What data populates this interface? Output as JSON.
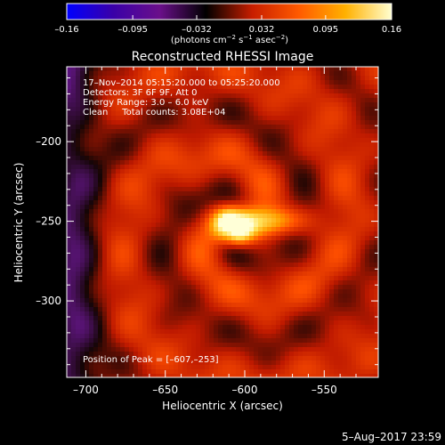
{
  "colorbar": {
    "tick_values": [
      -0.16,
      -0.095,
      -0.032,
      0.032,
      0.095,
      0.16
    ],
    "tick_labels": [
      "–0.16",
      "–0.095",
      "–0.032",
      "0.032",
      "0.095",
      "0.16"
    ],
    "unit_prefix": "(photons cm",
    "unit_exp1": "−2",
    "unit_mid": " s",
    "unit_exp2": "−1",
    "unit_asec": " asec",
    "unit_exp3": "−2",
    "unit_suffix": ")",
    "range": [
      -0.16,
      0.16
    ],
    "colors": [
      "#0000ff",
      "#3a00a8",
      "#6a0f8a",
      "#000000",
      "#c81e00",
      "#ff5a00",
      "#ffb000",
      "#ffffd0"
    ]
  },
  "chart_data": {
    "type": "heatmap",
    "title": "Reconstructed RHESSI Image",
    "xlabel": "Heliocentric X (arcsec)",
    "ylabel": "Heliocentric Y (arcsec)",
    "xlim": [
      -712,
      -516
    ],
    "ylim": [
      -348,
      -153
    ],
    "x_ticks": [
      -700,
      -650,
      -600,
      -550
    ],
    "x_tick_labels": [
      "–700",
      "–650",
      "–600",
      "–550"
    ],
    "y_ticks": [
      -200,
      -250,
      -300
    ],
    "y_tick_labels": [
      "–200",
      "–250",
      "–300"
    ],
    "peak": {
      "x": -607,
      "y": -253
    },
    "annotations": {
      "line1": "17–Nov–2014 05:15:20.000 to 05:25:20.000",
      "line2": "Detectors: 3F 6F 9F, Att 0",
      "line3": "Energy Range: 3.0 – 6.0 keV",
      "line4": "Clean     Total counts: 3.08E+04",
      "peak_label": "Position of Peak = [–607,–253]"
    }
  },
  "footer": {
    "date": "5–Aug–2017 23:59"
  }
}
